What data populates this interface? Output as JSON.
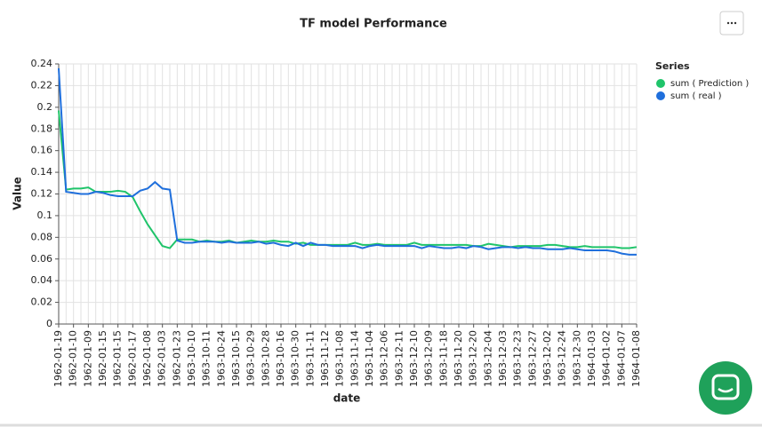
{
  "chart_data": {
    "type": "line",
    "title": "TF model Performance",
    "x_label": "date",
    "y_label": "Value",
    "legend_title": "Series",
    "legend": "right",
    "categories": [
      "1962-01-19",
      null,
      "1962-01-10",
      null,
      "1962-01-09",
      null,
      "1962-01-15",
      null,
      "1962-01-15",
      null,
      "1962-01-17",
      null,
      "1962-01-08",
      null,
      "1962-01-03",
      null,
      "1962-01-23",
      null,
      "1963-10-10",
      null,
      "1963-10-11",
      null,
      "1963-10-24",
      null,
      "1963-10-15",
      null,
      "1963-10-29",
      null,
      "1963-10-28",
      null,
      "1963-10-16",
      null,
      "1963-10-30",
      null,
      "1963-11-11",
      null,
      "1963-11-12",
      null,
      "1963-11-08",
      null,
      "1963-11-14",
      null,
      "1963-11-04",
      null,
      "1963-12-06",
      null,
      "1963-12-11",
      null,
      "1963-12-10",
      null,
      "1963-12-09",
      null,
      "1963-11-18",
      null,
      "1963-11-20",
      null,
      "1963-12-20",
      null,
      "1963-12-04",
      null,
      "1963-12-03",
      null,
      "1963-12-23",
      null,
      "1963-12-27",
      null,
      "1963-12-02",
      null,
      "1963-12-24",
      null,
      "1963-12-30",
      null,
      "1964-01-03",
      null,
      "1964-01-02",
      null,
      "1964-01-07",
      null,
      "1964-01-08"
    ],
    "series": [
      {
        "name": "sum ( Prediction )",
        "color": "#1fc46a",
        "values": [
          0.197,
          0.124,
          0.125,
          0.125,
          0.126,
          0.122,
          0.122,
          0.122,
          0.123,
          0.122,
          0.117,
          0.104,
          0.092,
          0.082,
          0.072,
          0.07,
          0.078,
          0.078,
          0.078,
          0.076,
          0.077,
          0.076,
          0.076,
          0.077,
          0.075,
          0.076,
          0.077,
          0.076,
          0.076,
          0.077,
          0.076,
          0.076,
          0.074,
          0.075,
          0.073,
          0.073,
          0.073,
          0.073,
          0.073,
          0.073,
          0.075,
          0.073,
          0.073,
          0.074,
          0.073,
          0.073,
          0.073,
          0.073,
          0.075,
          0.073,
          0.073,
          0.073,
          0.073,
          0.073,
          0.073,
          0.073,
          0.072,
          0.072,
          0.074,
          0.073,
          0.072,
          0.071,
          0.072,
          0.072,
          0.072,
          0.072,
          0.073,
          0.073,
          0.072,
          0.071,
          0.071,
          0.072,
          0.071,
          0.071,
          0.071,
          0.071,
          0.07,
          0.07,
          0.071
        ]
      },
      {
        "name": "sum ( real )",
        "color": "#1f6fdc",
        "values": [
          0.236,
          0.122,
          0.121,
          0.12,
          0.12,
          0.122,
          0.121,
          0.119,
          0.118,
          0.118,
          0.118,
          0.123,
          0.125,
          0.131,
          0.125,
          0.124,
          0.077,
          0.075,
          0.075,
          0.076,
          0.076,
          0.076,
          0.075,
          0.076,
          0.075,
          0.075,
          0.075,
          0.076,
          0.074,
          0.075,
          0.073,
          0.072,
          0.075,
          0.072,
          0.075,
          0.073,
          0.073,
          0.072,
          0.072,
          0.072,
          0.072,
          0.07,
          0.072,
          0.073,
          0.072,
          0.072,
          0.072,
          0.072,
          0.072,
          0.07,
          0.072,
          0.071,
          0.07,
          0.07,
          0.071,
          0.07,
          0.072,
          0.071,
          0.069,
          0.07,
          0.071,
          0.071,
          0.07,
          0.071,
          0.07,
          0.07,
          0.069,
          0.069,
          0.069,
          0.07,
          0.069,
          0.068,
          0.068,
          0.068,
          0.068,
          0.067,
          0.065,
          0.064,
          0.064
        ]
      }
    ],
    "ylim": [
      0,
      0.24
    ],
    "yticks": [
      0,
      0.02,
      0.04,
      0.06,
      0.08,
      0.1,
      0.12,
      0.14,
      0.16,
      0.18,
      0.2,
      0.22,
      0.24
    ],
    "grid": true
  }
}
